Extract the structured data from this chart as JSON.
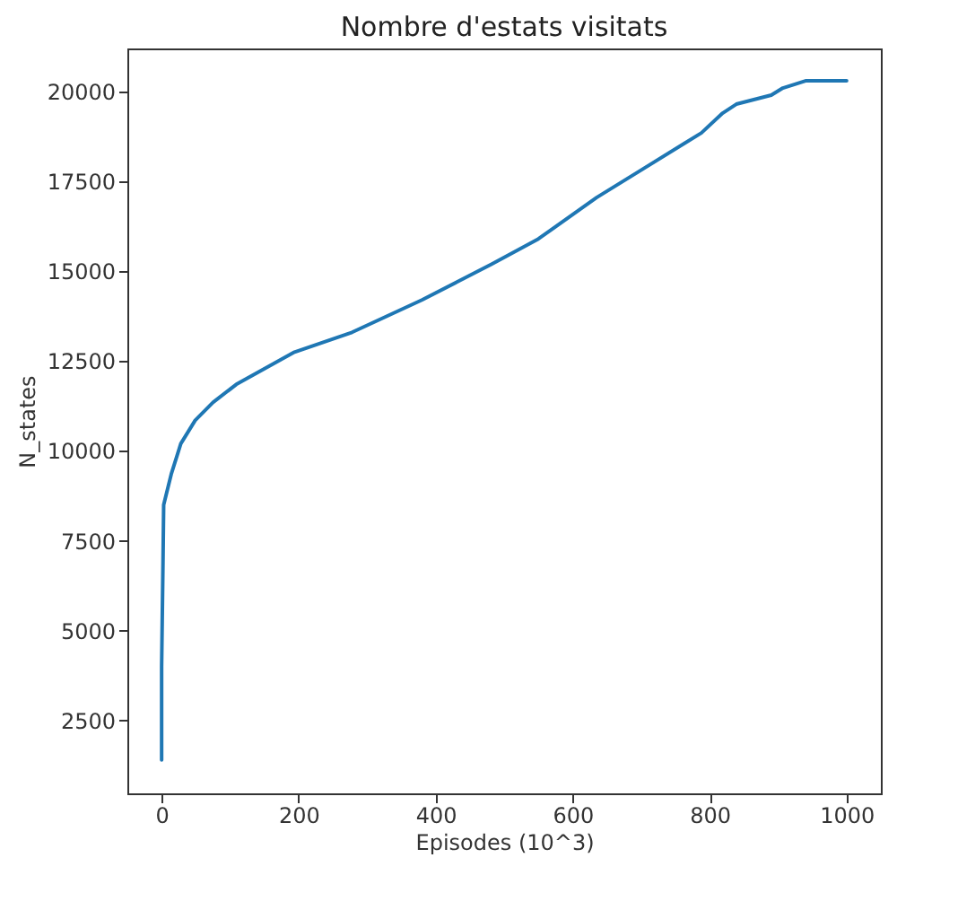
{
  "chart_data": {
    "type": "line",
    "title": "Nombre d'estats visitats",
    "xlabel": "Episodes (10^3)",
    "ylabel": "N_states",
    "x": [
      0,
      0,
      2,
      3,
      14,
      28,
      49,
      75,
      109,
      194,
      278,
      329,
      380,
      431,
      482,
      550,
      635,
      703,
      788,
      819,
      839,
      890,
      907,
      940,
      1000
    ],
    "series": [
      {
        "color": "#1f77b4",
        "values": [
          1400,
          4000,
          6900,
          8500,
          9350,
          10200,
          10850,
          11350,
          11850,
          12750,
          13300,
          13750,
          14200,
          14700,
          15200,
          15900,
          17050,
          17850,
          18850,
          19400,
          19650,
          19900,
          20100,
          20300,
          20300
        ]
      }
    ],
    "xlim": [
      -50,
      1050
    ],
    "xticks": [
      0,
      200,
      400,
      600,
      800,
      1000
    ],
    "ylim": [
      470,
      21200
    ],
    "yticks": [
      2500,
      5000,
      7500,
      10000,
      12500,
      15000,
      17500,
      20000
    ],
    "grid": false,
    "marker": "none",
    "line_style": "solid"
  }
}
